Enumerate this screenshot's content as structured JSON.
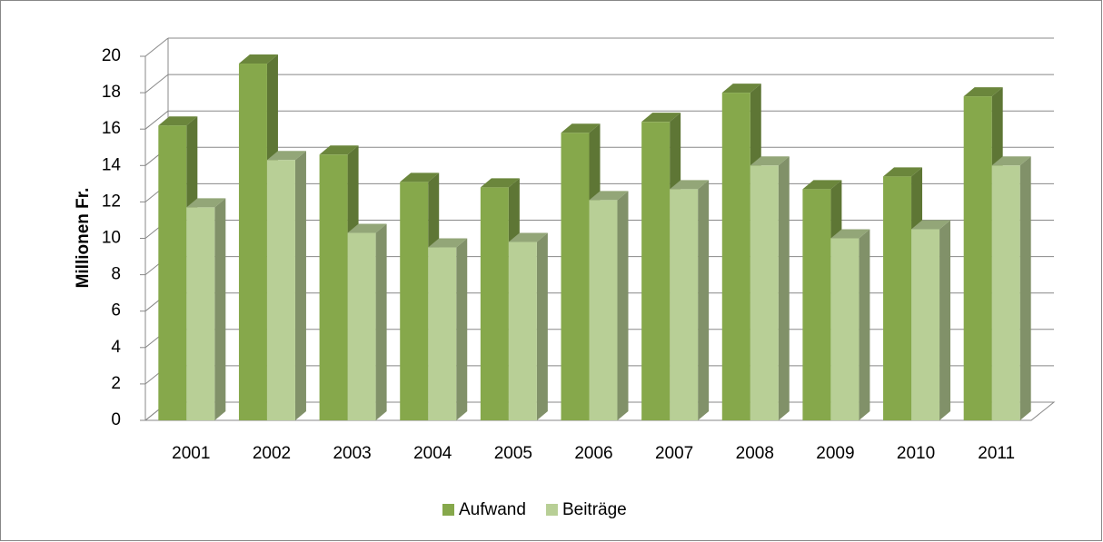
{
  "chart_data": {
    "type": "bar3d",
    "categories": [
      "2001",
      "2002",
      "2003",
      "2004",
      "2005",
      "2006",
      "2007",
      "2008",
      "2009",
      "2010",
      "2011"
    ],
    "series": [
      {
        "name": "Aufwand",
        "color": "#86a84b",
        "values": [
          16.2,
          19.6,
          14.6,
          13.1,
          12.8,
          15.8,
          16.4,
          18.0,
          12.7,
          13.4,
          17.8
        ]
      },
      {
        "name": "Beiträge",
        "color": "#b8cf96",
        "values": [
          11.7,
          14.3,
          10.3,
          9.5,
          9.8,
          12.1,
          12.7,
          14.0,
          10.0,
          10.5,
          14.0
        ]
      }
    ],
    "ylabel": "Millionen Fr.",
    "ylim": [
      0,
      20
    ],
    "yticks": [
      0,
      2,
      4,
      6,
      8,
      10,
      12,
      14,
      16,
      18,
      20
    ],
    "grid": true,
    "legend": "bottom"
  }
}
